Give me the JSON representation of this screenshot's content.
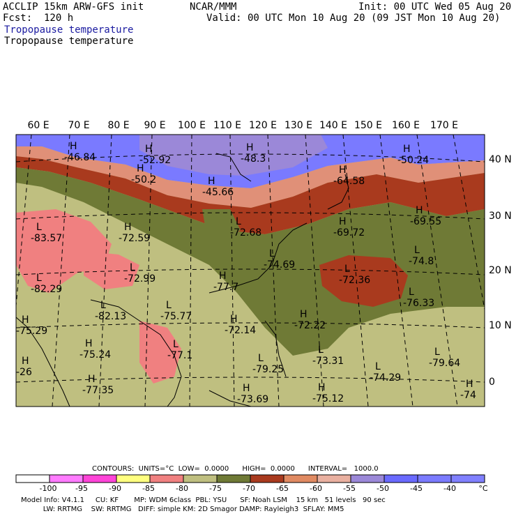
{
  "header": {
    "left_line1": "ACCLIP 15km ARW-GFS init",
    "left_line2": "Fcst:  120 h",
    "center": "NCAR/MMM",
    "right_line1": "Init: 00 UTC Wed 05 Aug 20",
    "right_line2": "Valid: 00 UTC Mon 10 Aug 20 (09 JST Mon 10 Aug 20)",
    "field_title_blue": "Tropopause temperature",
    "field_title_black": "Tropopause temperature"
  },
  "map": {
    "lon_labels": [
      "60 E",
      "70 E",
      "80 E",
      "90 E",
      "100 E",
      "110 E",
      "120 E",
      "130 E",
      "140 E",
      "150 E",
      "160 E",
      "170 E"
    ],
    "lat_labels": [
      "40 N",
      "30 N",
      "20 N",
      "10 N",
      "0"
    ],
    "markers": [
      {
        "letter": "H",
        "value": "-46.84"
      },
      {
        "letter": "H",
        "value": "-52.92"
      },
      {
        "letter": "H",
        "value": "-48.3"
      },
      {
        "letter": "H",
        "value": "-50.2"
      },
      {
        "letter": "H",
        "value": "-45.66"
      },
      {
        "letter": "H",
        "value": "-64.58"
      },
      {
        "letter": "H",
        "value": "-50.24"
      },
      {
        "letter": "L",
        "value": "-83.57"
      },
      {
        "letter": "H",
        "value": "-72.59"
      },
      {
        "letter": "L",
        "value": "-72.68"
      },
      {
        "letter": "H",
        "value": "-69.72"
      },
      {
        "letter": "H",
        "value": "-69.55"
      },
      {
        "letter": "L",
        "value": "-74.69"
      },
      {
        "letter": "L",
        "value": "-74.8"
      },
      {
        "letter": "L",
        "value": "-72.36"
      },
      {
        "letter": "L",
        "value": "-72.99"
      },
      {
        "letter": "L",
        "value": "-82.29"
      },
      {
        "letter": "H",
        "value": "-77.7"
      },
      {
        "letter": "L",
        "value": "-76.33"
      },
      {
        "letter": "L",
        "value": "-82.13"
      },
      {
        "letter": "L",
        "value": "-75.77"
      },
      {
        "letter": "H",
        "value": "-72.22"
      },
      {
        "letter": "H",
        "value": "-75.29"
      },
      {
        "letter": "H",
        "value": "-72.14"
      },
      {
        "letter": "H",
        "value": "-75.24"
      },
      {
        "letter": "L",
        "value": "-73.31"
      },
      {
        "letter": "L",
        "value": "-79.64"
      },
      {
        "letter": "L",
        "value": "-77.1"
      },
      {
        "letter": "L",
        "value": "-79.25"
      },
      {
        "letter": "H",
        "value": "-26"
      },
      {
        "letter": "H",
        "value": "-77.35"
      },
      {
        "letter": "L",
        "value": "-74.29"
      },
      {
        "letter": "H",
        "value": "-73.69"
      },
      {
        "letter": "H",
        "value": "-75.12"
      },
      {
        "letter": "H",
        "value": "-74"
      }
    ]
  },
  "contour_info": "CONTOURS:  UNITS=°C  LOW=  0.0000      HIGH=  0.0000      INTERVAL=   1000.0",
  "colorbar": {
    "colors": [
      "#ffffff",
      "#ff7bff",
      "#ff44d8",
      "#ffff7f",
      "#f08080",
      "#bfbf80",
      "#6f7a36",
      "#a93a1e",
      "#e08a62",
      "#e9b0a0",
      "#9b88d8",
      "#6a6aff",
      "#7b7bff",
      "#8080ff"
    ],
    "ticks": [
      "-100",
      "-95",
      "-90",
      "-85",
      "-80",
      "-75",
      "-70",
      "-65",
      "-60",
      "-55",
      "-50",
      "-45",
      "-40",
      "°C"
    ]
  },
  "footer": {
    "line1": "Model Info: V4.1.1     CU: KF       MP: WDM 6class  PBL: YSU      SF: Noah LSM    15 km   51 levels   90 sec",
    "line2": "          LW: RRTMG    SW: RRTMG   DIFF: simple KM: 2D Smagor DAMP: Rayleigh3  SFLAY: MM5"
  }
}
